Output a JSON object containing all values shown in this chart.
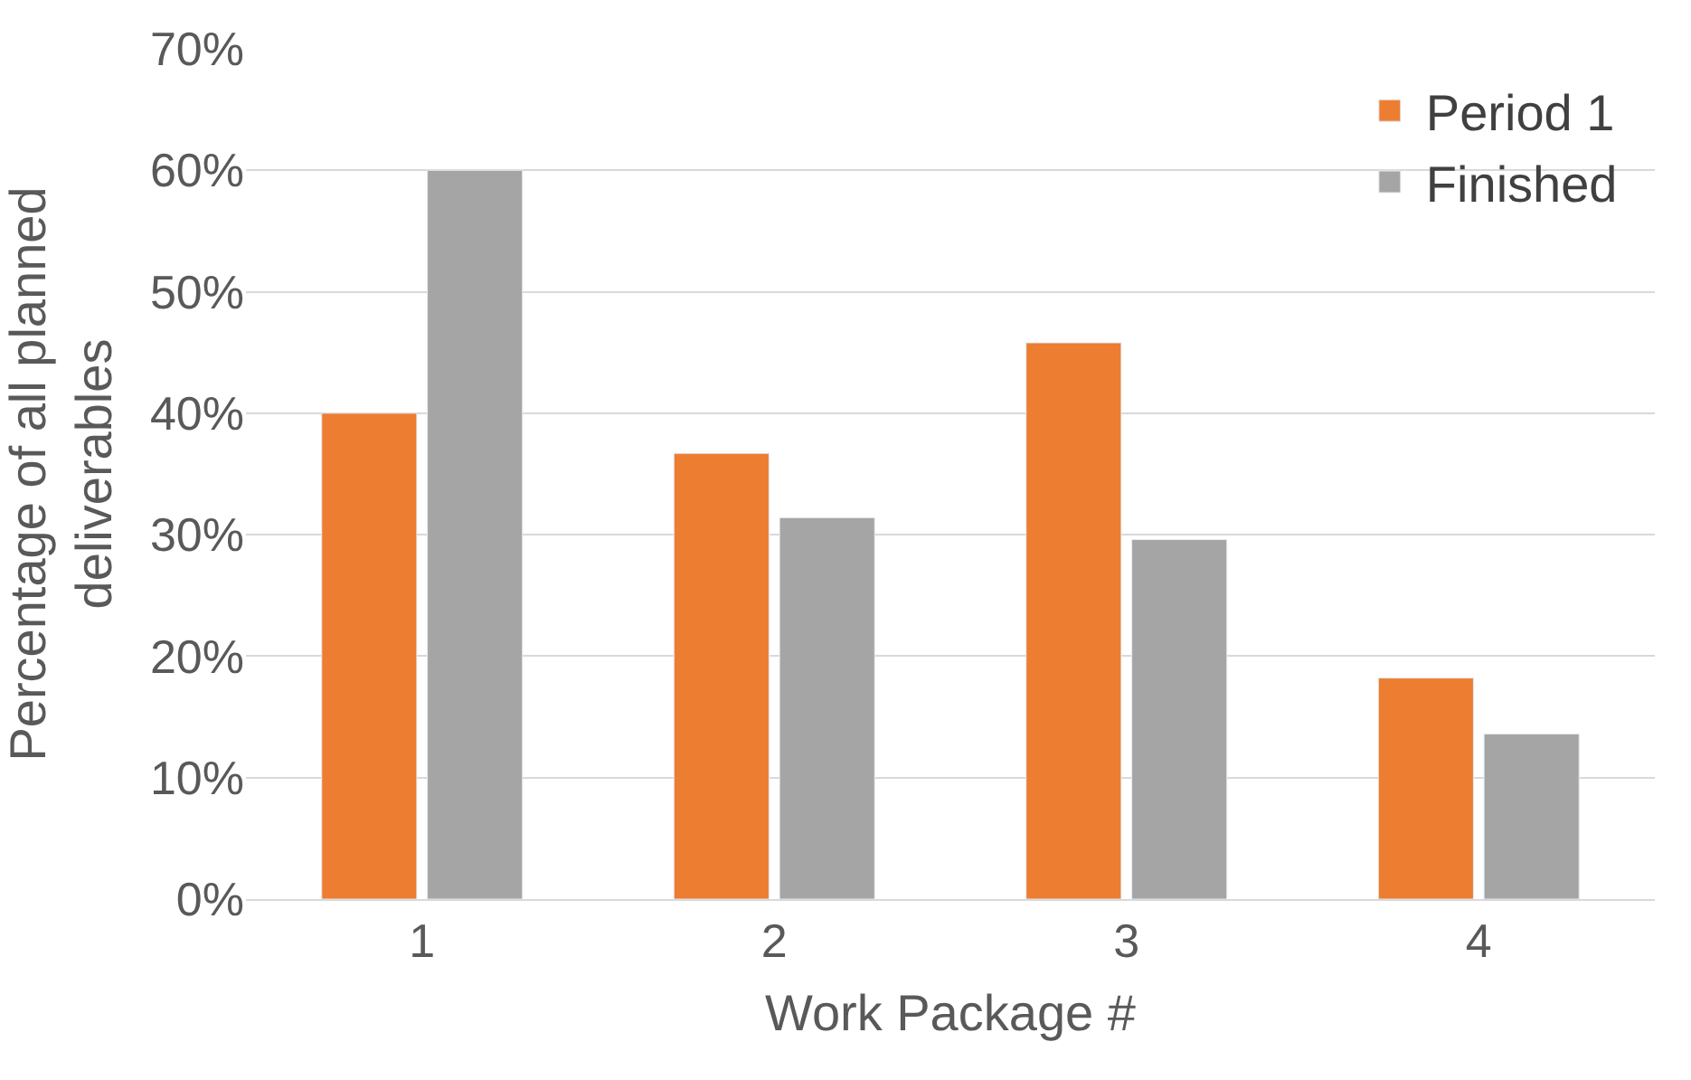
{
  "chart_data": {
    "type": "bar",
    "xlabel": "Work Package #",
    "ylabel": "Percentage of all planned deliverables",
    "categories": [
      "1",
      "2",
      "3",
      "4"
    ],
    "series": [
      {
        "name": "Period 1",
        "color": "#ed7d31",
        "values": [
          40,
          36.7,
          45.8,
          18.2
        ]
      },
      {
        "name": "Finished",
        "color": "#a5a5a5",
        "values": [
          60,
          31.4,
          29.6,
          13.6
        ]
      }
    ],
    "ylim": [
      0,
      70
    ],
    "yticks": [
      {
        "value": 0,
        "label": "0%"
      },
      {
        "value": 10,
        "label": "10%"
      },
      {
        "value": 20,
        "label": "20%"
      },
      {
        "value": 30,
        "label": "30%"
      },
      {
        "value": 40,
        "label": "40%"
      },
      {
        "value": 50,
        "label": "50%"
      },
      {
        "value": 60,
        "label": "60%"
      },
      {
        "value": 70,
        "label": "70%"
      }
    ],
    "grid": "y",
    "legend": "top right"
  }
}
